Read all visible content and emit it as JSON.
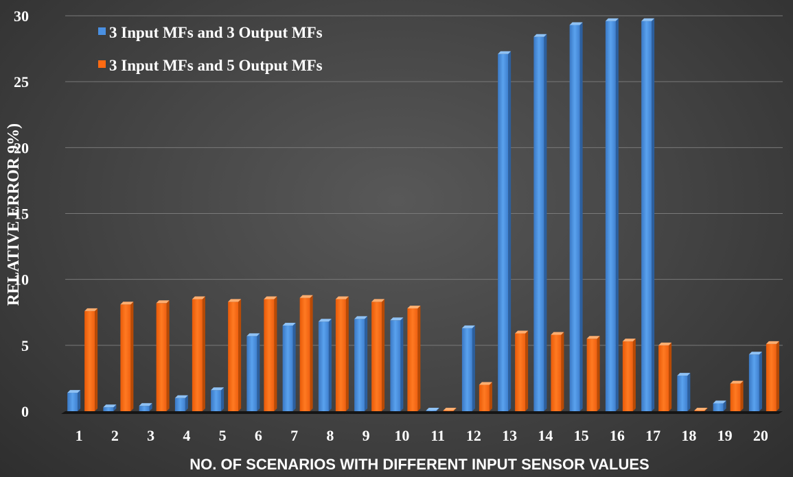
{
  "chart_data": {
    "type": "bar",
    "title": "",
    "xlabel": "NO. OF SCENARIOS WITH DIFFERENT INPUT SENSOR VALUES",
    "ylabel": "RELATIVE ERROR 9%)",
    "ylim": [
      0,
      30
    ],
    "yticks": [
      "0",
      "5",
      "10",
      "15",
      "20",
      "25",
      "30"
    ],
    "categories": [
      "1",
      "2",
      "3",
      "4",
      "5",
      "6",
      "7",
      "8",
      "9",
      "10",
      "11",
      "12",
      "13",
      "14",
      "15",
      "16",
      "17",
      "18",
      "19",
      "20"
    ],
    "grid": true,
    "legend_position": "top-left",
    "series": [
      {
        "name": "3 Input MFs and 3 Output MFs",
        "color": "#4a90e2",
        "values": [
          1.4,
          0.3,
          0.4,
          1.0,
          1.6,
          5.7,
          6.5,
          6.8,
          7.0,
          6.9,
          0.05,
          6.3,
          27.1,
          28.4,
          29.3,
          29.6,
          29.6,
          2.7,
          0.6,
          4.3
        ]
      },
      {
        "name": "3 Input MFs and 5 Output MFs",
        "color": "#ff6a12",
        "values": [
          7.6,
          8.1,
          8.2,
          8.5,
          8.3,
          8.5,
          8.6,
          8.5,
          8.3,
          7.8,
          0.05,
          2.0,
          5.9,
          5.8,
          5.5,
          5.3,
          5.0,
          0.05,
          2.1,
          5.1
        ]
      }
    ]
  }
}
